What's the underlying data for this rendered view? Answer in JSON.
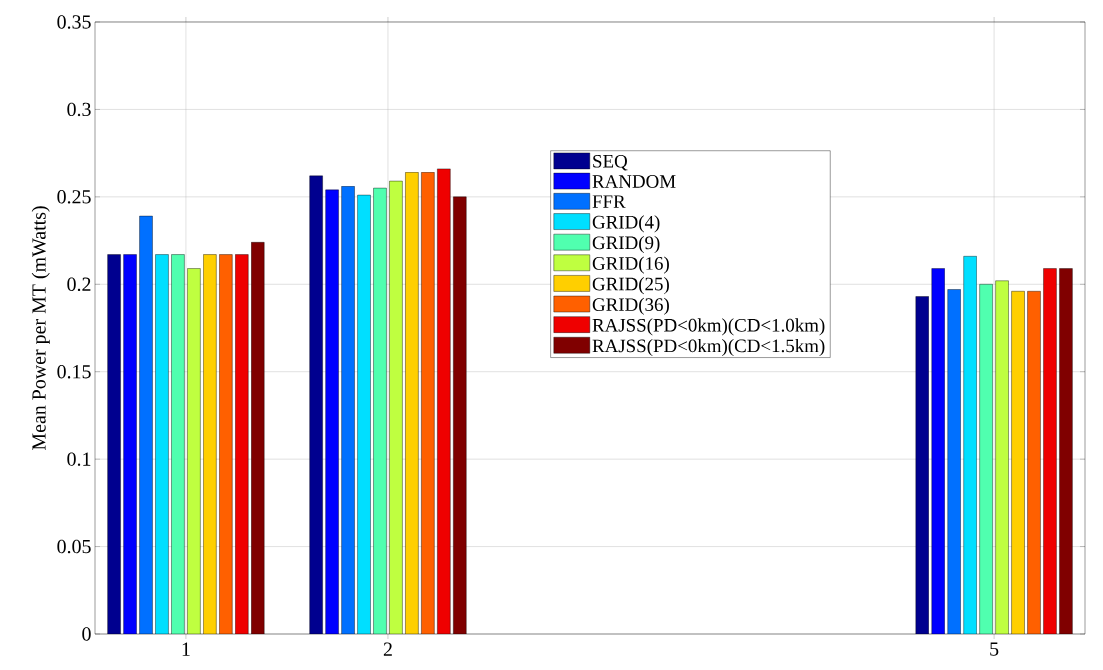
{
  "chart_data": {
    "type": "bar",
    "ylabel": "Mean Power per MT (mWatts)",
    "x": [
      1,
      2,
      5
    ],
    "xlim": [
      0.55,
      5.45
    ],
    "xticks": [
      1,
      2,
      5
    ],
    "ylim": [
      0,
      0.35
    ],
    "yticks": [
      0,
      0.05,
      0.1,
      0.15,
      0.2,
      0.25,
      0.3,
      0.35
    ],
    "grid": true,
    "legend": "right",
    "series": [
      {
        "name": "SEQ",
        "color": "#00008f",
        "values": [
          0.217,
          0.262,
          0.193
        ]
      },
      {
        "name": "RANDOM",
        "color": "#0000ff",
        "values": [
          0.217,
          0.254,
          0.209
        ]
      },
      {
        "name": "FFR",
        "color": "#0070ff",
        "values": [
          0.239,
          0.256,
          0.197
        ]
      },
      {
        "name": "GRID(4)",
        "color": "#00dfff",
        "values": [
          0.217,
          0.251,
          0.216
        ]
      },
      {
        "name": "GRID(9)",
        "color": "#50ffaf",
        "values": [
          0.217,
          0.255,
          0.2
        ]
      },
      {
        "name": "GRID(16)",
        "color": "#bfff40",
        "values": [
          0.209,
          0.259,
          0.202
        ]
      },
      {
        "name": "GRID(25)",
        "color": "#ffcf00",
        "values": [
          0.217,
          0.264,
          0.196
        ]
      },
      {
        "name": "GRID(36)",
        "color": "#ff6000",
        "values": [
          0.217,
          0.264,
          0.196
        ]
      },
      {
        "name": "RAJSS(PD<0km)(CD<1.0km)",
        "color": "#ef0000",
        "values": [
          0.217,
          0.266,
          0.209
        ]
      },
      {
        "name": "RAJSS(PD<0km)(CD<1.5km)",
        "color": "#800000",
        "values": [
          0.224,
          0.25,
          0.209
        ]
      }
    ]
  }
}
